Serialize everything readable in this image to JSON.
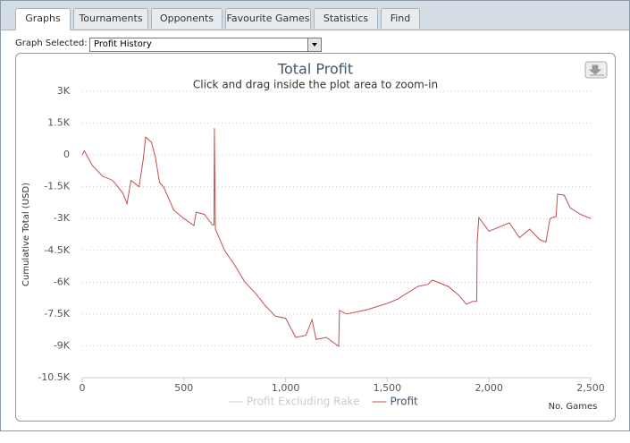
{
  "tabs": [
    "Graphs",
    "Tournaments",
    "Opponents",
    "Favourite Games",
    "Statistics",
    "Find"
  ],
  "selector": {
    "label": "Graph Selected:",
    "value": "Profit History"
  },
  "chart_data": {
    "type": "line",
    "title": "Total Profit",
    "subtitle": "Click and drag inside the plot area to zoom-in",
    "x_label": "No. Games",
    "y_label": "Cumulative Total (USD)",
    "x": [
      0,
      10,
      50,
      100,
      150,
      200,
      220,
      240,
      280,
      300,
      312,
      340,
      360,
      380,
      400,
      450,
      500,
      549,
      560,
      600,
      640,
      648,
      650,
      655,
      700,
      750,
      800,
      850,
      900,
      950,
      1000,
      1050,
      1100,
      1130,
      1150,
      1200,
      1261,
      1265,
      1300,
      1400,
      1500,
      1550,
      1600,
      1650,
      1700,
      1722,
      1800,
      1850,
      1889,
      1920,
      1940,
      1942,
      1950,
      2000,
      2050,
      2100,
      2150,
      2200,
      2250,
      2280,
      2300,
      2330,
      2337,
      2370,
      2400,
      2450,
      2500
    ],
    "series": [
      {
        "name": "Profit Excluding Rake",
        "color": "#cccccc",
        "visible": false
      },
      {
        "name": "Profit",
        "color": "#c0504d",
        "visible": true,
        "values": [
          0,
          200,
          -500,
          -1000,
          -1200,
          -1800,
          -2300,
          -1200,
          -1500,
          -200,
          840,
          600,
          -100,
          -1300,
          -1500,
          -2600,
          -3000,
          -3330,
          -2700,
          -2800,
          -3300,
          -3300,
          1260,
          -3500,
          -4500,
          -5200,
          -6000,
          -6500,
          -7100,
          -7600,
          -7700,
          -8600,
          -8500,
          -7760,
          -8700,
          -8600,
          -9020,
          -7330,
          -7500,
          -7300,
          -7000,
          -6800,
          -6500,
          -6200,
          -6100,
          -5900,
          -6200,
          -6600,
          -7040,
          -6900,
          -6900,
          -4090,
          -2950,
          -3600,
          -3400,
          -3200,
          -3900,
          -3500,
          -4000,
          -4100,
          -3000,
          -2900,
          -1850,
          -1900,
          -2500,
          -2800,
          -3000
        ]
      }
    ],
    "xlim": [
      0,
      2500
    ],
    "ylim": [
      -10500,
      3000
    ],
    "xticks": [
      0,
      500,
      {
        "value": 1000,
        "label": "1,000"
      },
      {
        "value": 1500,
        "label": "1,500"
      },
      {
        "value": 2000,
        "label": "2,000"
      },
      {
        "value": 2500,
        "label": "2,500"
      }
    ],
    "yticks": [
      {
        "value": 3000,
        "label": "3K"
      },
      {
        "value": 1500,
        "label": "1.5K"
      },
      0,
      {
        "value": -1500,
        "label": "-1.5K"
      },
      {
        "value": -3000,
        "label": "-3K"
      },
      {
        "value": -4500,
        "label": "-4.5K"
      },
      {
        "value": -6000,
        "label": "-6K"
      },
      {
        "value": -7500,
        "label": "-7.5K"
      },
      {
        "value": -9000,
        "label": "-9K"
      },
      {
        "value": -10500,
        "label": "-10.5K"
      }
    ],
    "grid": true
  }
}
